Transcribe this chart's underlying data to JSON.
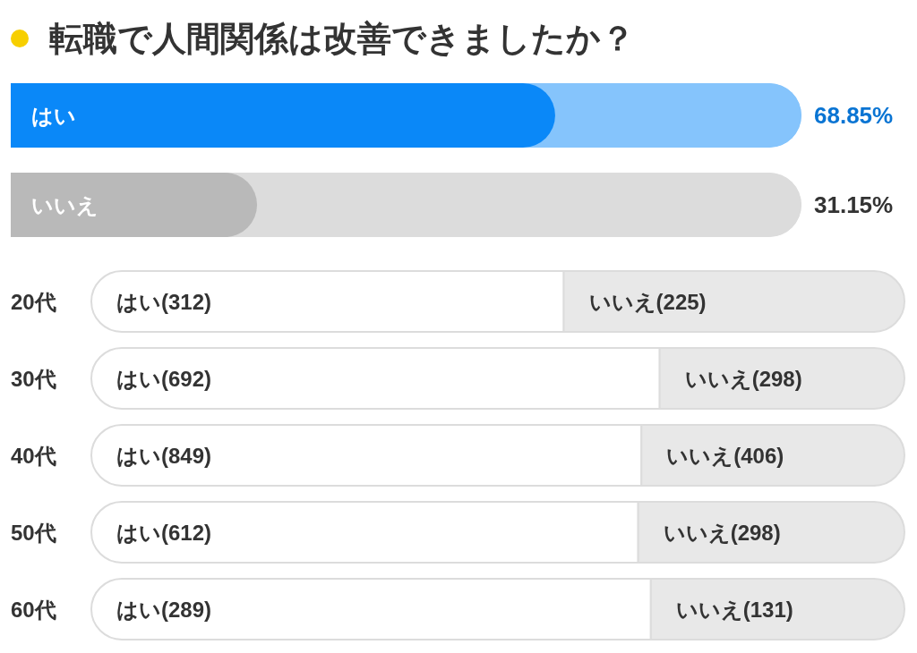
{
  "chart_data": [
    {
      "type": "bar",
      "orientation": "horizontal",
      "stacked": true,
      "title": "転職で人間関係は改善できましたか？",
      "categories": [
        "はい",
        "いいえ"
      ],
      "series": [
        {
          "colors": [
            "#0a88f8",
            "#b9b9b9"
          ],
          "values": [
            68.85,
            31.15
          ],
          "value_labels": [
            "68.85%",
            "31.15%"
          ]
        },
        {
          "colors": [
            "#85c4fc",
            "#dcdcdc"
          ],
          "values": [
            31.15,
            68.85
          ]
        }
      ],
      "xlim": [
        0,
        100
      ]
    },
    {
      "type": "bar",
      "orientation": "horizontal",
      "stacked": true,
      "categories": [
        "20代"
      ],
      "series": [
        {
          "color": "#ffffff",
          "values": [
            312
          ],
          "value_labels": [
            "はい(312)"
          ]
        },
        {
          "color": "#e8e8e8",
          "values": [
            225
          ],
          "value_labels": [
            "いいえ(225)"
          ]
        }
      ],
      "xlim": [
        0,
        537
      ]
    },
    {
      "type": "bar",
      "orientation": "horizontal",
      "stacked": true,
      "categories": [
        "30代"
      ],
      "series": [
        {
          "color": "#ffffff",
          "values": [
            692
          ],
          "value_labels": [
            "はい(692)"
          ]
        },
        {
          "color": "#e8e8e8",
          "values": [
            298
          ],
          "value_labels": [
            "いいえ(298)"
          ]
        }
      ],
      "xlim": [
        0,
        990
      ]
    },
    {
      "type": "bar",
      "orientation": "horizontal",
      "stacked": true,
      "categories": [
        "40代"
      ],
      "series": [
        {
          "color": "#ffffff",
          "values": [
            849
          ],
          "value_labels": [
            "はい(849)"
          ]
        },
        {
          "color": "#e8e8e8",
          "values": [
            406
          ],
          "value_labels": [
            "いいえ(406)"
          ]
        }
      ],
      "xlim": [
        0,
        1255
      ]
    },
    {
      "type": "bar",
      "orientation": "horizontal",
      "stacked": true,
      "categories": [
        "50代"
      ],
      "series": [
        {
          "color": "#ffffff",
          "values": [
            612
          ],
          "value_labels": [
            "はい(612)"
          ]
        },
        {
          "color": "#e8e8e8",
          "values": [
            298
          ],
          "value_labels": [
            "いいえ(298)"
          ]
        }
      ],
      "xlim": [
        0,
        910
      ]
    },
    {
      "type": "bar",
      "orientation": "horizontal",
      "stacked": true,
      "categories": [
        "60代"
      ],
      "series": [
        {
          "color": "#ffffff",
          "values": [
            289
          ],
          "value_labels": [
            "はい(289)"
          ]
        },
        {
          "color": "#e8e8e8",
          "values": [
            131
          ],
          "value_labels": [
            "いいえ(131)"
          ]
        }
      ],
      "xlim": [
        0,
        420
      ]
    }
  ]
}
